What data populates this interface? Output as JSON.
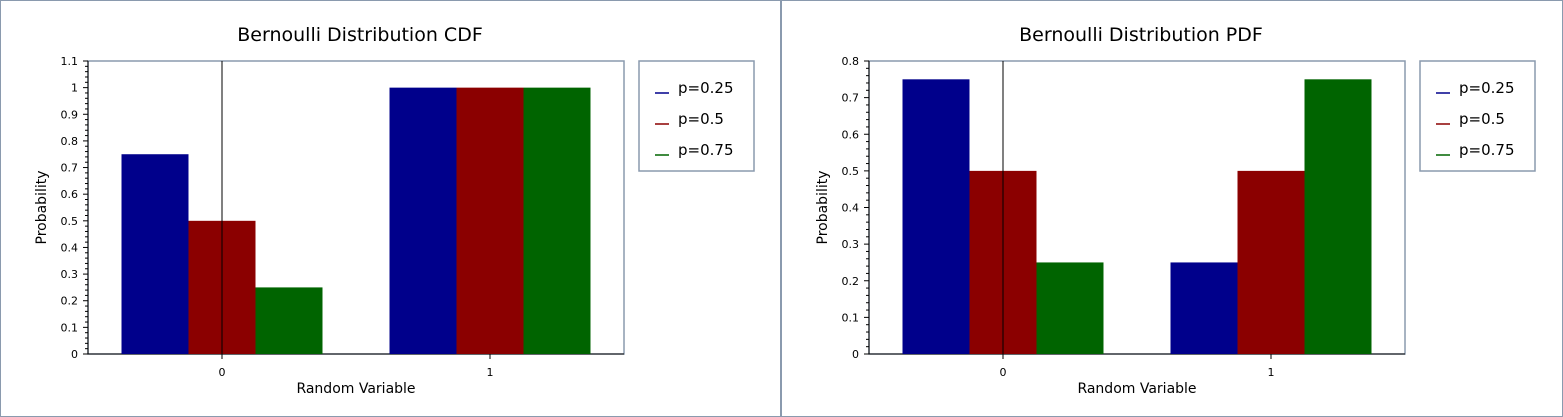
{
  "chart_data": [
    {
      "type": "bar",
      "title": "Bernoulli Distribution CDF",
      "xlabel": "Random Variable",
      "ylabel": "Probability",
      "categories": [
        "0",
        "1"
      ],
      "ylim": [
        0,
        1.1
      ],
      "yticks": [
        "0",
        "0.1",
        "0.2",
        "0.3",
        "0.4",
        "0.5",
        "0.6",
        "0.7",
        "0.8",
        "0.9",
        "1",
        "1.1"
      ],
      "legend_position": "right",
      "series": [
        {
          "name": "p=0.25",
          "values": [
            0.75,
            1
          ],
          "color": "#00008b"
        },
        {
          "name": "p=0.5",
          "values": [
            0.5,
            1
          ],
          "color": "#8b0000"
        },
        {
          "name": "p=0.75",
          "values": [
            0.25,
            1
          ],
          "color": "#006400"
        }
      ]
    },
    {
      "type": "bar",
      "title": "Bernoulli Distribution PDF",
      "xlabel": "Random Variable",
      "ylabel": "Probability",
      "categories": [
        "0",
        "1"
      ],
      "ylim": [
        0,
        0.8
      ],
      "yticks": [
        "0",
        "0.1",
        "0.2",
        "0.3",
        "0.4",
        "0.5",
        "0.6",
        "0.7",
        "0.8"
      ],
      "legend_position": "right",
      "series": [
        {
          "name": "p=0.25",
          "values": [
            0.75,
            0.25
          ],
          "color": "#00008b"
        },
        {
          "name": "p=0.5",
          "values": [
            0.5,
            0.5
          ],
          "color": "#8b0000"
        },
        {
          "name": "p=0.75",
          "values": [
            0.25,
            0.75
          ],
          "color": "#006400"
        }
      ]
    }
  ]
}
